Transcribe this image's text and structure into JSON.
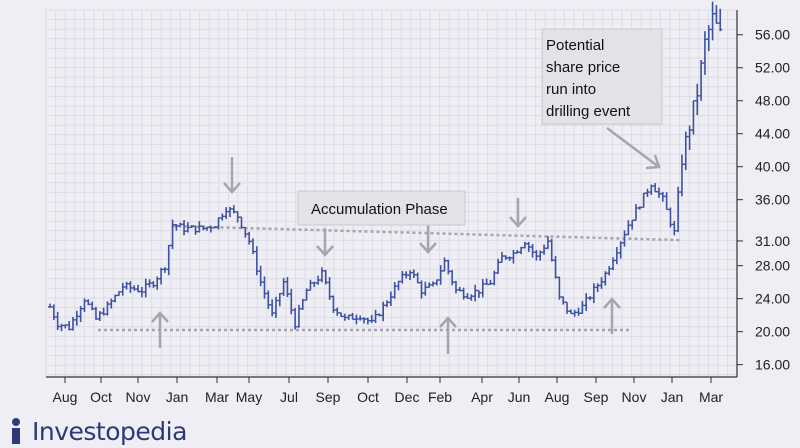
{
  "chart_data": {
    "type": "ohlc",
    "x_labels": [
      "Aug",
      "Oct",
      "Nov",
      "Jan",
      "Mar",
      "May",
      "Jul",
      "Sep",
      "Oct",
      "Dec",
      "Feb",
      "Apr",
      "Jun",
      "Aug",
      "Sep",
      "Nov",
      "Jan",
      "Mar"
    ],
    "y_ticks": [
      16,
      20,
      24,
      28,
      31,
      36,
      40,
      44,
      48,
      52,
      56
    ],
    "y_tick_labels": [
      "16.00",
      "20.00",
      "24.00",
      "28.00",
      "31.00",
      "36.00",
      "40.00",
      "44.00",
      "48.00",
      "52.00",
      "56.00"
    ],
    "ylim": [
      14.5,
      59
    ],
    "grid": true,
    "colors": {
      "bars": "#3d52a0",
      "guide": "#a5a5ae",
      "annotation_bg": "#e3e3e7",
      "arrow": "#a5a5ae"
    },
    "anchors": [
      [
        0,
        23
      ],
      [
        2,
        21
      ],
      [
        5,
        20.5
      ],
      [
        9,
        24
      ],
      [
        12,
        21.5
      ],
      [
        15,
        23
      ],
      [
        19,
        25.5
      ],
      [
        24,
        25
      ],
      [
        27,
        26
      ],
      [
        30,
        28
      ],
      [
        32,
        33
      ],
      [
        35,
        32.5
      ],
      [
        40,
        32.5
      ],
      [
        43,
        33
      ],
      [
        46,
        35
      ],
      [
        49,
        34
      ],
      [
        52,
        31
      ],
      [
        55,
        26
      ],
      [
        58,
        22
      ],
      [
        61,
        26
      ],
      [
        64,
        21
      ],
      [
        67,
        25
      ],
      [
        71,
        27
      ],
      [
        74,
        23
      ],
      [
        77,
        21.5
      ],
      [
        81,
        22
      ],
      [
        84,
        21
      ],
      [
        87,
        23
      ],
      [
        91,
        26
      ],
      [
        94,
        27.5
      ],
      [
        97,
        25
      ],
      [
        100,
        25.5
      ],
      [
        103,
        28.5
      ],
      [
        106,
        25
      ],
      [
        109,
        24.5
      ],
      [
        112,
        25
      ],
      [
        115,
        26
      ],
      [
        118,
        29
      ],
      [
        121,
        29.5
      ],
      [
        124,
        31
      ],
      [
        127,
        29
      ],
      [
        130,
        31
      ],
      [
        133,
        24
      ],
      [
        136,
        22
      ],
      [
        139,
        23
      ],
      [
        142,
        25
      ],
      [
        145,
        27
      ],
      [
        148,
        30
      ],
      [
        151,
        33
      ],
      [
        154,
        35.5
      ],
      [
        157,
        38
      ],
      [
        160,
        36
      ],
      [
        163,
        32
      ],
      [
        165,
        41
      ],
      [
        167,
        45
      ],
      [
        169,
        49
      ],
      [
        171,
        55
      ],
      [
        173,
        58
      ],
      [
        175,
        56
      ]
    ],
    "x_span": 175,
    "annotations": [
      {
        "lines": [
          "Accumulation Phase"
        ]
      },
      {
        "lines": [
          "Potential",
          "share price",
          "run into",
          "drilling event"
        ]
      }
    ],
    "markers": {
      "down_arrows_at": [
        55,
        84,
        112,
        139
      ],
      "up_arrows_at": [
        35,
        112,
        157
      ]
    },
    "resistance_line": {
      "y_start": 32.8,
      "y_end": 31.1
    },
    "support_line": {
      "y": 20.2
    }
  },
  "brand": {
    "name": "Investopedia"
  }
}
